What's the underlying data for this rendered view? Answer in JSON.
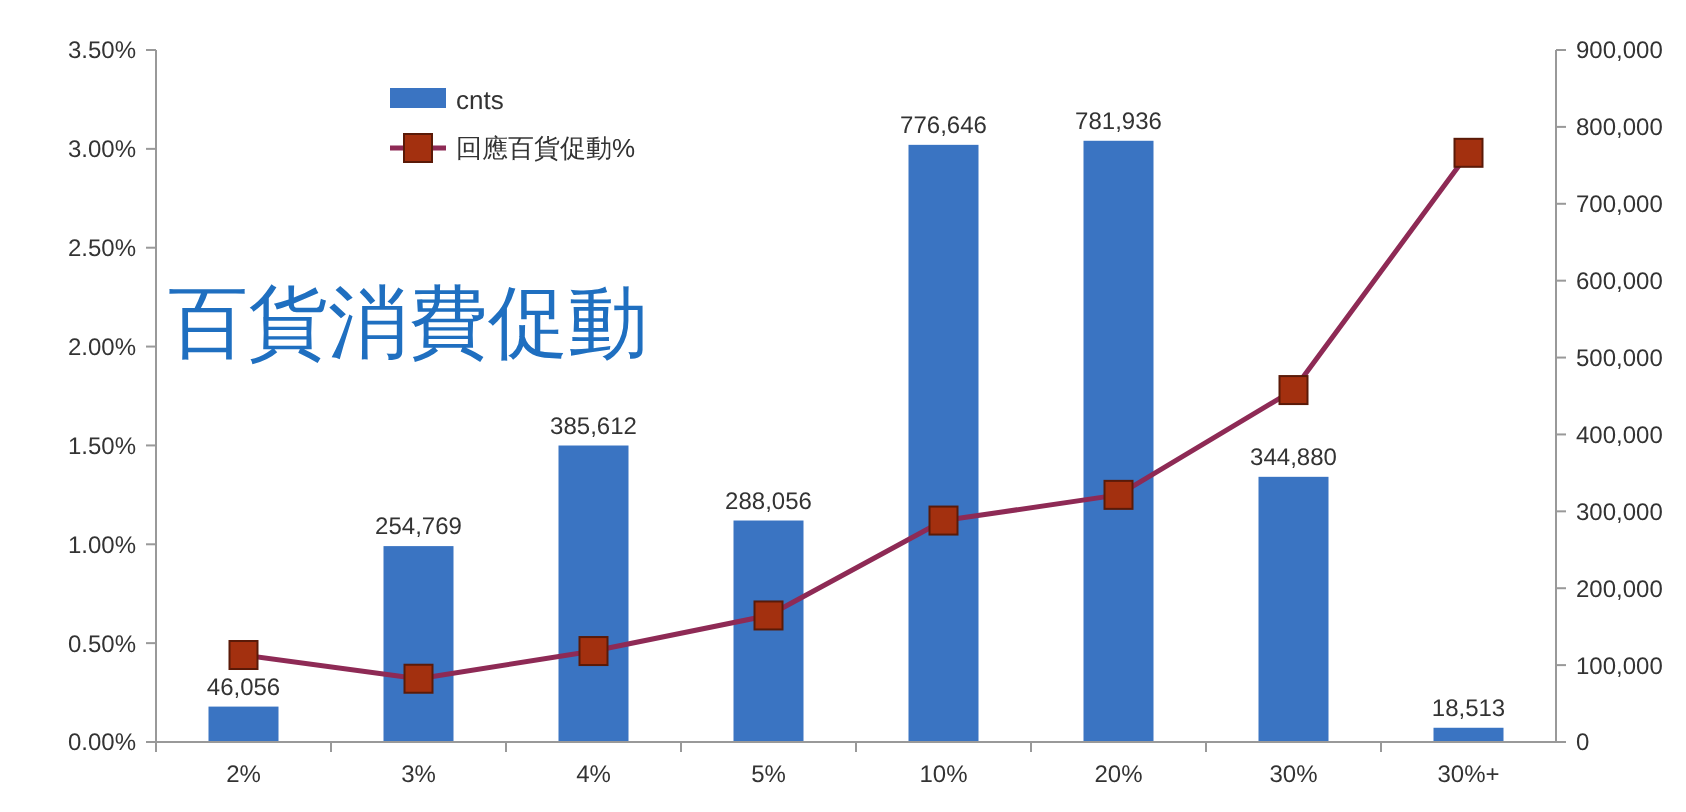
{
  "chart_data": {
    "type": "bar",
    "title": "百貨消費促動",
    "categories": [
      "2%",
      "3%",
      "4%",
      "5%",
      "10%",
      "20%",
      "30%",
      "30%+"
    ],
    "series": [
      {
        "name": "cnts",
        "axis": "y2",
        "color": "#3a74c2",
        "values": [
          46056,
          254769,
          385612,
          288056,
          776646,
          781936,
          344880,
          18513
        ],
        "value_labels": [
          "46,056",
          "254,769",
          "385,612",
          "288,056",
          "776,646",
          "781,936",
          "344,880",
          "18,513"
        ]
      },
      {
        "name": "回應百貨促動%",
        "type": "line",
        "color": "#8e2a55",
        "marker": "square",
        "values": [
          0.44,
          0.32,
          0.46,
          0.64,
          1.12,
          1.25,
          1.78,
          2.98
        ]
      }
    ],
    "ylim": [
      0,
      3.5
    ],
    "yticks": [
      {
        "value": 0,
        "label": "0.00%"
      },
      {
        "value": 0.5,
        "label": "0.50%"
      },
      {
        "value": 1,
        "label": "1.00%"
      },
      {
        "value": 1.5,
        "label": "1.50%"
      },
      {
        "value": 2,
        "label": "2.00%"
      },
      {
        "value": 2.5,
        "label": "2.50%"
      },
      {
        "value": 3,
        "label": "3.00%"
      },
      {
        "value": 3.5,
        "label": "3.50%"
      }
    ],
    "y2lim": [
      0,
      900000
    ],
    "y2ticks": [
      0,
      {
        "value": 100000,
        "label": "100,000"
      },
      {
        "value": 200000,
        "label": "200,000"
      },
      {
        "value": 300000,
        "label": "300,000"
      },
      {
        "value": 400000,
        "label": "400,000"
      },
      {
        "value": 500000,
        "label": "500,000"
      },
      {
        "value": 600000,
        "label": "600,000"
      },
      {
        "value": 700000,
        "label": "700,000"
      },
      {
        "value": 800000,
        "label": "800,000"
      },
      {
        "value": 900000,
        "label": "900,000"
      }
    ],
    "legend": "top",
    "grid": false
  }
}
